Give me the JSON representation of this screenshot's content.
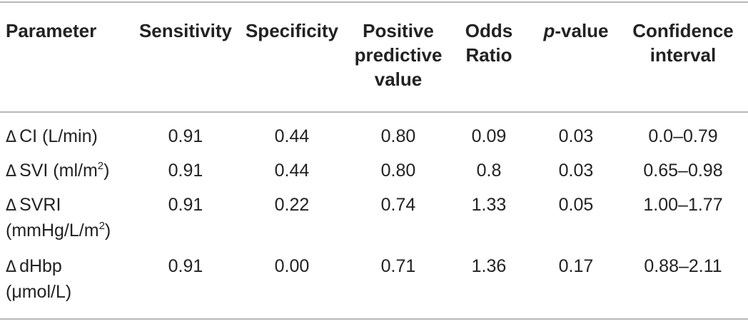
{
  "table": {
    "headers": [
      {
        "lines": [
          "Parameter"
        ]
      },
      {
        "lines": [
          "Sensitivity"
        ]
      },
      {
        "lines": [
          "Specificity"
        ]
      },
      {
        "lines": [
          "Positive",
          "predictive",
          "value"
        ]
      },
      {
        "lines": [
          "Odds",
          "Ratio"
        ]
      },
      {
        "italic_prefix": "p",
        "lines": [
          "-value"
        ]
      },
      {
        "lines": [
          "Confidence",
          "interval"
        ]
      }
    ],
    "delta_symbol": "Δ",
    "rows": [
      {
        "parameter_lines": [
          {
            "pre": "CI (L/min)",
            "sup": "",
            "post": ""
          }
        ],
        "sensitivity": "0.91",
        "specificity": "0.44",
        "ppv": "0.80",
        "odds_ratio": "0.09",
        "p_value": "0.03",
        "ci": "0.0–0.79"
      },
      {
        "parameter_lines": [
          {
            "pre": "SVI (ml/m",
            "sup": "2",
            "post": ")"
          }
        ],
        "sensitivity": "0.91",
        "specificity": "0.44",
        "ppv": "0.80",
        "odds_ratio": "0.8",
        "p_value": "0.03",
        "ci": "0.65–0.98"
      },
      {
        "parameter_lines": [
          {
            "pre": "SVRI",
            "sup": "",
            "post": ""
          },
          {
            "pre": "(mmHg/L/m",
            "sup": "2",
            "post": ")"
          }
        ],
        "sensitivity": "0.91",
        "specificity": "0.22",
        "ppv": "0.74",
        "odds_ratio": "1.33",
        "p_value": "0.05",
        "ci": "1.00–1.77"
      },
      {
        "parameter_lines": [
          {
            "pre": "dHbp",
            "sup": "",
            "post": ""
          },
          {
            "pre": "(μmol/L)",
            "sup": "",
            "post": ""
          }
        ],
        "sensitivity": "0.91",
        "specificity": "0.00",
        "ppv": "0.71",
        "odds_ratio": "1.36",
        "p_value": "0.17",
        "ci": "0.88–2.11"
      }
    ]
  }
}
